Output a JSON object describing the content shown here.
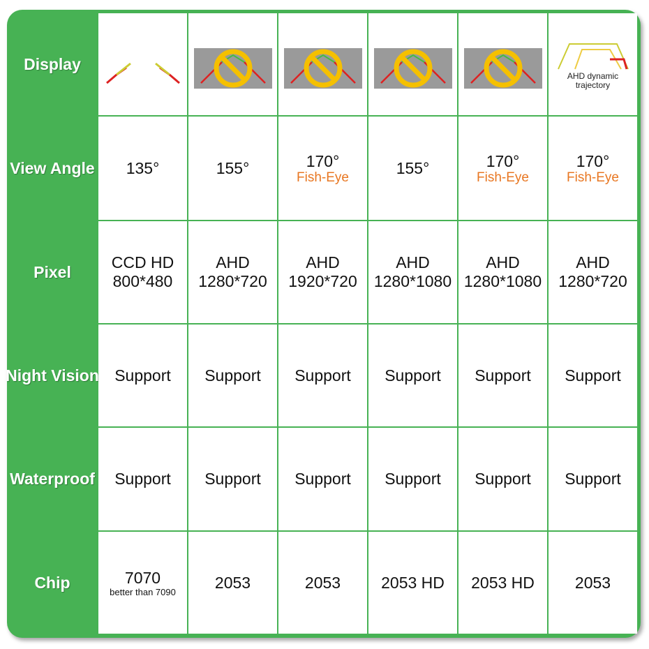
{
  "table": {
    "rows": [
      {
        "label": "Display",
        "note": [
          "AHD dynamic",
          "trajectory"
        ]
      },
      {
        "label": "View Angle",
        "cells": [
          [
            "135°"
          ],
          [
            "155°"
          ],
          [
            "170°",
            "Fish-Eye"
          ],
          [
            "155°"
          ],
          [
            "170°",
            "Fish-Eye"
          ],
          [
            "170°",
            "Fish-Eye"
          ]
        ]
      },
      {
        "label": "Pixel",
        "cells": [
          [
            "CCD HD",
            "800*480"
          ],
          [
            "AHD",
            "1280*720"
          ],
          [
            "AHD",
            "1920*720"
          ],
          [
            "AHD",
            "1280*1080"
          ],
          [
            "AHD",
            "1280*1080"
          ],
          [
            "AHD",
            "1280*720"
          ]
        ]
      },
      {
        "label": "Night Vision",
        "cells": [
          [
            "Support"
          ],
          [
            "Support"
          ],
          [
            "Support"
          ],
          [
            "Support"
          ],
          [
            "Support"
          ],
          [
            "Support"
          ]
        ]
      },
      {
        "label": "Waterproof",
        "cells": [
          [
            "Support"
          ],
          [
            "Support"
          ],
          [
            "Support"
          ],
          [
            "Support"
          ],
          [
            "Support"
          ],
          [
            "Support"
          ]
        ]
      },
      {
        "label": "Chip",
        "cells": [
          [
            "7070",
            "better than 7090"
          ],
          [
            "2053"
          ],
          [
            "2053"
          ],
          [
            "2053 HD"
          ],
          [
            "2053 HD"
          ],
          [
            "2053"
          ]
        ]
      }
    ]
  }
}
